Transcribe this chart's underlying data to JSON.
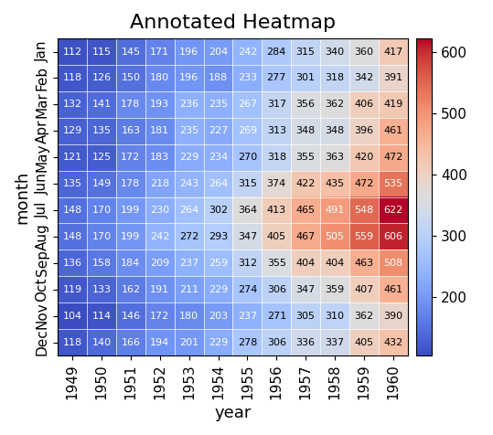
{
  "title": "Annotated Heatmap",
  "xlabel": "year",
  "ylabel": "month",
  "months": [
    "Jan",
    "Feb",
    "Mar",
    "Apr",
    "May",
    "Jun",
    "Jul",
    "Aug",
    "Sep",
    "Oct",
    "Nov",
    "Dec"
  ],
  "years": [
    1949,
    1950,
    1951,
    1952,
    1953,
    1954,
    1955,
    1956,
    1957,
    1958,
    1959,
    1960
  ],
  "data": [
    [
      112,
      115,
      145,
      171,
      196,
      204,
      242,
      284,
      315,
      340,
      360,
      417
    ],
    [
      118,
      126,
      150,
      180,
      196,
      188,
      233,
      277,
      301,
      318,
      342,
      391
    ],
    [
      132,
      141,
      178,
      193,
      236,
      235,
      267,
      317,
      356,
      362,
      406,
      419
    ],
    [
      129,
      135,
      163,
      181,
      235,
      227,
      269,
      313,
      348,
      348,
      396,
      461
    ],
    [
      121,
      125,
      172,
      183,
      229,
      234,
      270,
      318,
      355,
      363,
      420,
      472
    ],
    [
      135,
      149,
      178,
      218,
      243,
      264,
      315,
      374,
      422,
      435,
      472,
      535
    ],
    [
      148,
      170,
      199,
      230,
      264,
      302,
      364,
      413,
      465,
      491,
      548,
      622
    ],
    [
      148,
      170,
      199,
      242,
      272,
      293,
      347,
      405,
      467,
      505,
      559,
      606
    ],
    [
      136,
      158,
      184,
      209,
      237,
      259,
      312,
      355,
      404,
      404,
      463,
      508
    ],
    [
      119,
      133,
      162,
      191,
      211,
      229,
      274,
      306,
      347,
      359,
      407,
      461
    ],
    [
      104,
      114,
      146,
      172,
      180,
      203,
      237,
      271,
      305,
      310,
      362,
      390
    ],
    [
      118,
      140,
      166,
      194,
      201,
      229,
      278,
      306,
      336,
      337,
      405,
      432
    ]
  ],
  "cmap": "coolwarm",
  "title_fontsize": 16,
  "label_fontsize": 13,
  "tick_fontsize": 11,
  "annot_fontsize": 8,
  "white_thresh_low": 0.32,
  "white_thresh_high": 0.72
}
